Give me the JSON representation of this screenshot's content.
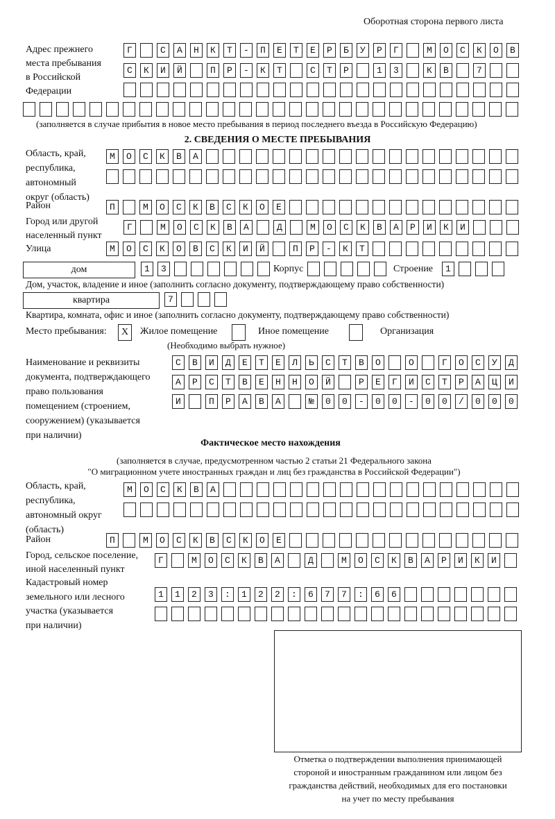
{
  "header": {
    "page_side": "Оборотная сторона первого листа"
  },
  "previous_address": {
    "label": [
      "Адрес прежнего",
      "места пребывания",
      "в Российской",
      "Федерации"
    ],
    "rows": [
      "Г САНКТ-ПЕТЕРБУРГ МОСКОВ",
      "СКИЙ ПР-КТ СТР 13 КВ 7",
      "",
      ""
    ],
    "note": "(заполняется в случае прибытия в новое место пребывания в период последнего въезда в Российскую Федерацию)"
  },
  "section2": {
    "title": "2. СВЕДЕНИЯ О МЕСТЕ ПРЕБЫВАНИЯ",
    "region_label": [
      "Область, край,",
      "республика,",
      "автономный",
      "округ (область)"
    ],
    "region_rows": [
      "МОСКВА",
      ""
    ],
    "district_label": "Район",
    "district_value": "П МОСКВСКОЕ",
    "city_label": [
      "Город или другой",
      "населенный пункт"
    ],
    "city_value": "Г МОСКВА Д МОСКВАРИКИ",
    "street_label": "Улица",
    "street_value": "МОСКОВСКИЙ ПР-КТ",
    "house_type": "дом",
    "house_value": "13",
    "korpus_label": "Корпус",
    "korpus_value": "",
    "building_label": "Строение",
    "building_value": "1",
    "house_note": "Дом, участок, владение и иное (заполнить согласно документу, подтверждающему право собственности)",
    "apartment_type": "квартира",
    "apartment_value": "7",
    "apartment_note": "Квартира, комната, офис и иное (заполнить согласно документу, подтверждающему право собственности)",
    "stay_place_label": "Место пребывания:",
    "stay_options": [
      {
        "label": "Жилое помещение",
        "mark": "X",
        "checked": true
      },
      {
        "label": "Иное помещение",
        "mark": "",
        "checked": false
      },
      {
        "label": "Организация",
        "mark": "",
        "checked": false
      }
    ],
    "stay_note": "(Необходимо выбрать нужное)",
    "document_label": [
      "Наименование и реквизиты",
      "документа, подтверждающего",
      "право пользования",
      "помещением (строением,",
      "сооружением) (указывается",
      "при наличии)"
    ],
    "document_rows": [
      "СВИДЕТЕЛЬСТВО О ГОСУД",
      "АРСТВЕННОЙ РЕГИСТРАЦИ",
      "И ПРАВА №00-00-00/000"
    ]
  },
  "actual_location": {
    "title": "Фактическое место нахождения",
    "note_line1": "(заполняется в случае, предусмотренном частью 2 статьи 21 Федерального закона",
    "note_line2": "\"О миграционном учете иностранных граждан и лиц без гражданства в Российской Федерации\")",
    "region_label": [
      "Область, край,",
      "республика,",
      "автономный округ",
      "(область)"
    ],
    "region_rows": [
      "МОСКВА",
      ""
    ],
    "district_label": "Район",
    "district_value": "П МОСКВСКОЕ",
    "city_label": [
      "Город, сельское поселение,",
      "иной населенный пункт"
    ],
    "city_value": "Г МОСКВА Д МОСКВАРИКИ",
    "cadastral_label": [
      "Кадастровый номер",
      "земельного или лесного",
      "участка (указывается",
      "при наличии)"
    ],
    "cadastral_rows": [
      "1123:122:677:66",
      ""
    ]
  },
  "confirmation": {
    "caption": [
      "Отметка о подтверждении выполнения принимающей",
      "стороной и иностранным гражданином или лицом без",
      "гражданства действий, необходимых для его постановки",
      "на учет по месту пребывания"
    ]
  }
}
